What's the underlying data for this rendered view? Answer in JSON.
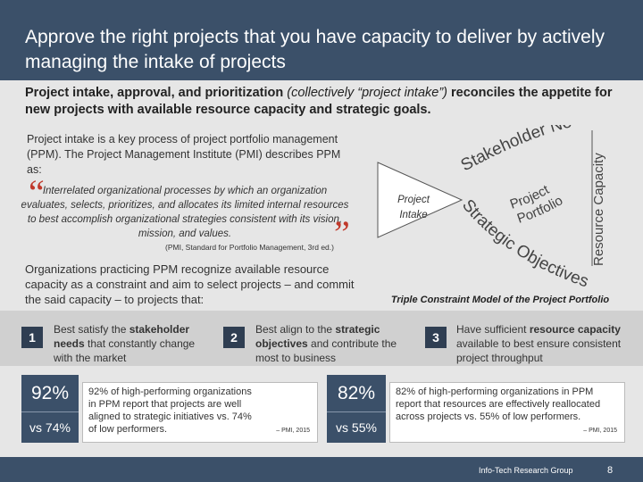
{
  "title": "Approve the right projects that you have capacity to deliver by actively managing the intake of projects",
  "subtitle": {
    "part1": "Project intake, approval, and prioritization ",
    "italic": "(collectively “project intake”)",
    "part2": " reconciles the appetite for new projects with available resource capacity and strategic goals."
  },
  "intro": "Project intake is a key process of project portfolio management (PPM). The Project Management Institute (PMI) describes PPM as:",
  "quote": {
    "open_mark": "“",
    "text": "Interrelated organizational processes by which an organization evaluates, selects, prioritizes, and allocates its limited internal resources to best accomplish organizational strategies consistent with its vision, mission, and values.",
    "close_mark": "”",
    "source": "(PMI, Standard for Portfolio Management, 3rd ed.)"
  },
  "org_text": "Organizations practicing PPM recognize available resource capacity as a constraint and aim to select projects – and commit the said capacity – to projects that:",
  "diagram": {
    "center": "Project Intake",
    "left_arc": "Stakeholder Need",
    "bottom_arc": "Strategic Objectives",
    "right_side": "Resource Capacity",
    "inner": "Project Portfolio",
    "caption": "Triple Constraint Model of the Project Portfolio"
  },
  "points": [
    {
      "num": "1",
      "pre": "Best satisfy the ",
      "bold": "stakeholder needs",
      "post": " that constantly change with the market"
    },
    {
      "num": "2",
      "pre": "Best align to the ",
      "bold": "strategic objectives",
      "post": " and contribute the most to business"
    },
    {
      "num": "3",
      "pre": "Have sufficient ",
      "bold": "resource capacity",
      "post": " available to best ensure consistent project throughput"
    }
  ],
  "stats": [
    {
      "big": "92%",
      "small": "vs 74%",
      "text": "92% of high-performing organizations in PPM report that projects are well aligned to strategic initiatives vs. 74% of low performers.",
      "source": "– PMI, 2015"
    },
    {
      "big": "82%",
      "small": "vs 55%",
      "text": "82% of high-performing organizations in PPM report that resources are effectively reallocated across projects vs. 55% of low performers.",
      "source": "– PMI, 2015"
    }
  ],
  "footer": {
    "org": "Info-Tech Research Group",
    "page": "8"
  },
  "colors": {
    "header": "#3b5069",
    "accent_red": "#c0392b",
    "number_box": "#2f3e52"
  }
}
